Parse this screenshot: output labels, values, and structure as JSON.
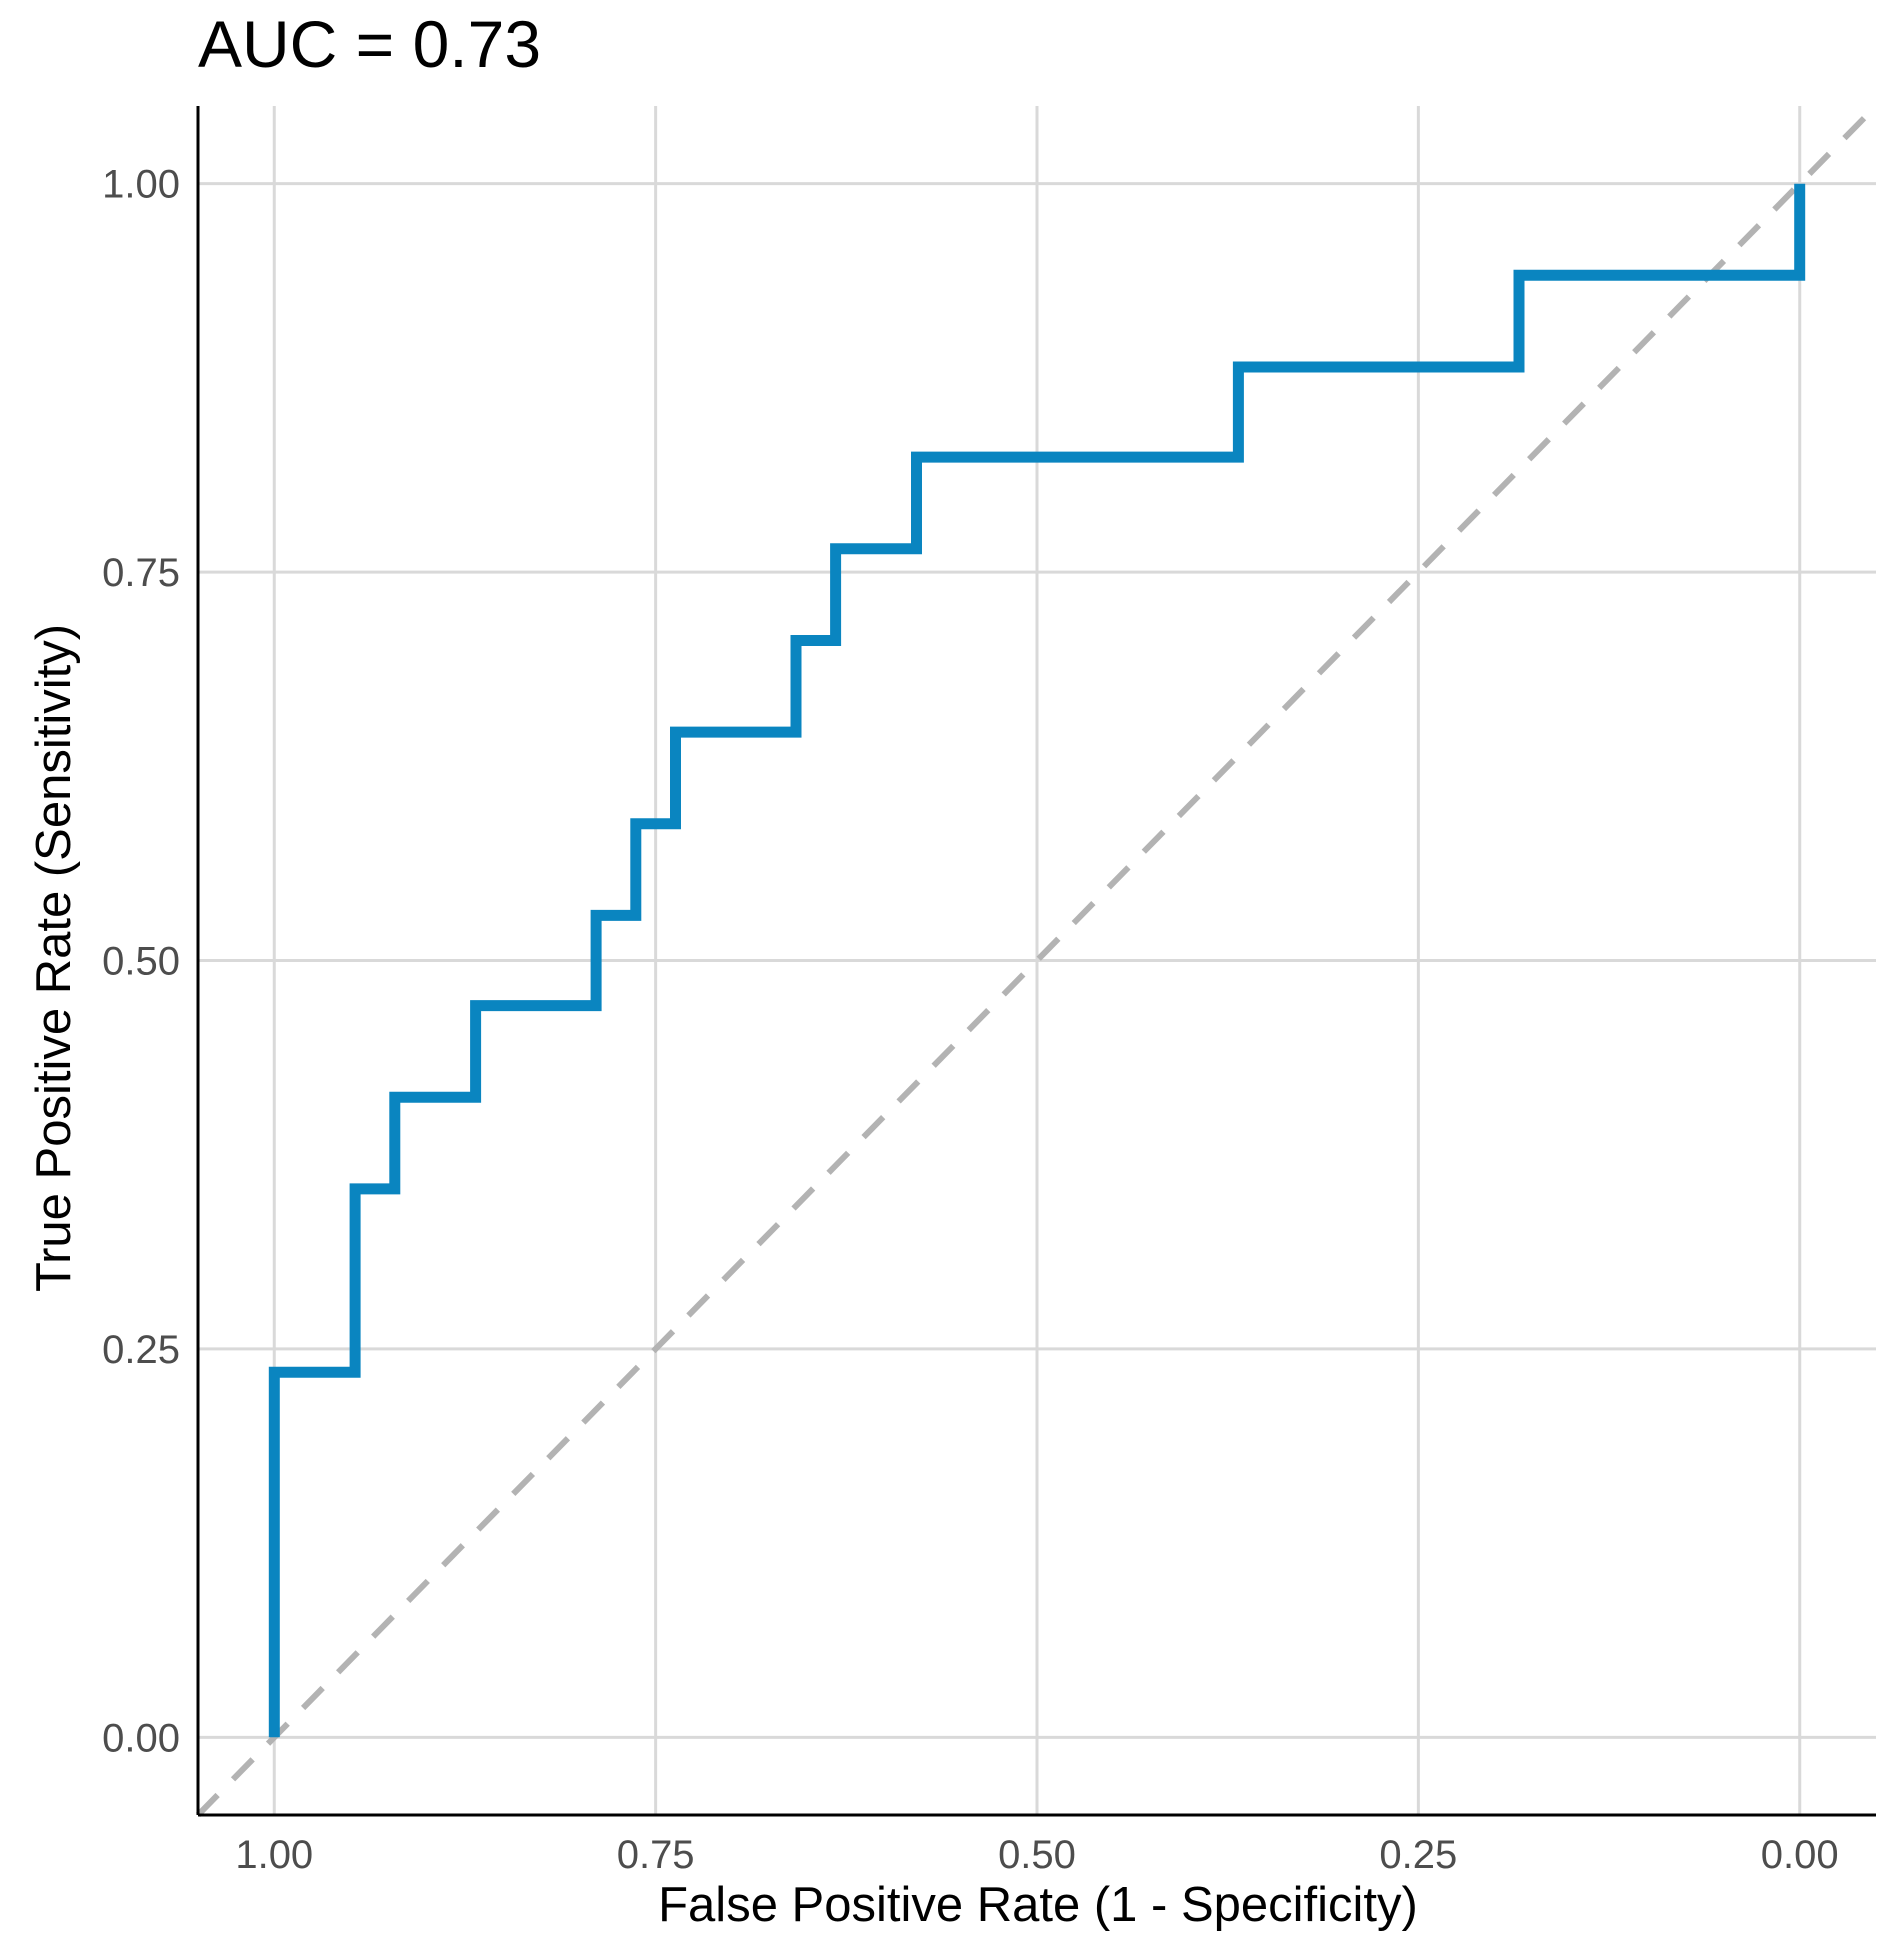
{
  "chart_data": {
    "type": "line",
    "title": "AUC = 0.73",
    "xlabel": "False Positive Rate (1 - Specificity)",
    "ylabel": "True Positive Rate (Sensitivity)",
    "xlim": [
      1.05,
      -0.05
    ],
    "ylim": [
      -0.05,
      1.05
    ],
    "x_reversed": true,
    "grid": true,
    "x_ticks": [
      1.0,
      0.75,
      0.5,
      0.25,
      0.0
    ],
    "x_tick_labels": [
      "1.00",
      "0.75",
      "0.50",
      "0.25",
      "0.00"
    ],
    "y_ticks": [
      0.0,
      0.25,
      0.5,
      0.75,
      1.0
    ],
    "y_tick_labels": [
      "0.00",
      "0.25",
      "0.50",
      "0.75",
      "1.00"
    ],
    "series": [
      {
        "name": "ROC curve",
        "color": "#0a85c0",
        "style": "step",
        "specificity": [
          1.0,
          1.0,
          0.947,
          0.947,
          0.921,
          0.921,
          0.868,
          0.868,
          0.789,
          0.789,
          0.763,
          0.763,
          0.737,
          0.737,
          0.658,
          0.658,
          0.632,
          0.632,
          0.579,
          0.579,
          0.368,
          0.368,
          0.184,
          0.184,
          0.0,
          0.0
        ],
        "sensitivity": [
          0.0,
          0.235,
          0.235,
          0.353,
          0.353,
          0.412,
          0.412,
          0.471,
          0.471,
          0.529,
          0.529,
          0.588,
          0.588,
          0.647,
          0.647,
          0.706,
          0.706,
          0.765,
          0.765,
          0.824,
          0.824,
          0.882,
          0.882,
          0.941,
          0.941,
          1.0
        ]
      },
      {
        "name": "chance line",
        "color": "#b3b3b3",
        "style": "dashed",
        "specificity": [
          1.05,
          -0.05
        ],
        "sensitivity": [
          -0.05,
          1.05
        ]
      }
    ]
  }
}
